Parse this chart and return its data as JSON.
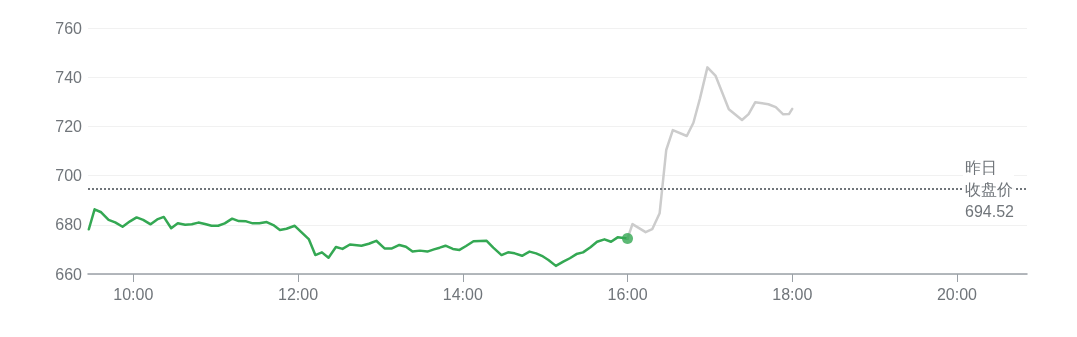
{
  "chart_data": {
    "type": "line",
    "xlim": [
      9.45,
      20.85
    ],
    "xticks": [
      {
        "value": 10,
        "label": "10:00"
      },
      {
        "value": 12,
        "label": "12:00"
      },
      {
        "value": 14,
        "label": "14:00"
      },
      {
        "value": 16,
        "label": "16:00"
      },
      {
        "value": 18,
        "label": "18:00"
      },
      {
        "value": 20,
        "label": "20:00"
      }
    ],
    "ylim": [
      660,
      760
    ],
    "yticks": [
      660,
      680,
      700,
      720,
      740,
      760
    ],
    "grid": "y",
    "marker": "none",
    "series": [
      {
        "color": "#34a853",
        "x": [
          9.46,
          9.53,
          9.61,
          9.7,
          9.78,
          9.87,
          9.96,
          10.04,
          10.12,
          10.21,
          10.29,
          10.37,
          10.46,
          10.54,
          10.63,
          10.71,
          10.79,
          10.87,
          10.95,
          11.03,
          11.11,
          11.2,
          11.28,
          11.37,
          11.45,
          11.53,
          11.62,
          11.7,
          11.78,
          11.86,
          11.96,
          12.04,
          12.13,
          12.21,
          12.29,
          12.37,
          12.46,
          12.54,
          12.63,
          12.77,
          12.86,
          12.95,
          13.05,
          13.14,
          13.23,
          13.31,
          13.39,
          13.48,
          13.57,
          13.65,
          13.72,
          13.79,
          13.88,
          13.96,
          14.04,
          14.13,
          14.29,
          14.37,
          14.47,
          14.55,
          14.63,
          14.72,
          14.81,
          14.89,
          14.96,
          15.04,
          15.13,
          15.22,
          15.3,
          15.38,
          15.46,
          15.55,
          15.63,
          15.72,
          15.8,
          15.88,
          16.0
        ],
        "values": [
          678.2,
          686.3,
          685.1,
          682,
          681,
          679.2,
          681.4,
          683,
          682,
          680.2,
          682.2,
          683.2,
          678.6,
          680.6,
          680,
          680.2,
          680.9,
          680.3,
          679.6,
          679.6,
          680.6,
          682.5,
          681.5,
          681.4,
          680.6,
          680.6,
          681.1,
          679.9,
          677.9,
          678.4,
          679.6,
          677,
          674.2,
          667.7,
          668.8,
          666.6,
          671,
          670.2,
          672,
          671.5,
          672.3,
          673.5,
          670.4,
          670.4,
          671.8,
          671.1,
          669.1,
          669.5,
          669.1,
          670,
          670.7,
          671.5,
          670.2,
          669.8,
          671.4,
          673.3,
          673.5,
          670.7,
          667.7,
          668.8,
          668.4,
          667.4,
          669.1,
          668.4,
          667.4,
          665.7,
          663.3,
          665,
          666.4,
          668.1,
          668.8,
          670.9,
          673.1,
          674.1,
          673.1,
          674.9,
          674.4
        ]
      },
      {
        "color": "#cccccc",
        "x": [
          16.0,
          16.06,
          16.22,
          16.3,
          16.39,
          16.47,
          16.55,
          16.72,
          16.8,
          16.88,
          16.97,
          17.07,
          17.23,
          17.39,
          17.47,
          17.55,
          17.71,
          17.8,
          17.89,
          17.96,
          18.0
        ],
        "values": [
          674.4,
          680.3,
          677,
          678.2,
          684.7,
          710.4,
          718.5,
          716.1,
          721.5,
          731.4,
          744,
          740.5,
          727,
          722.6,
          725,
          729.8,
          729,
          727.8,
          724.9,
          725,
          727.1
        ]
      },
      {
        "type": "scatter",
        "marker": "circle",
        "color": "#34a853",
        "x": [
          16.0
        ],
        "values": [
          674.4
        ]
      }
    ],
    "ref_lines": [
      {
        "axis": "y",
        "value": 694.52,
        "label": "昨日收盘价 694.52",
        "color": "#70757a",
        "line_style": "dotted"
      }
    ]
  }
}
